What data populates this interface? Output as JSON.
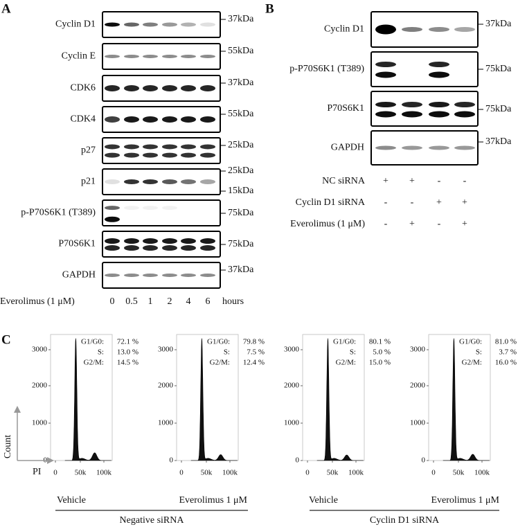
{
  "panels": {
    "A": {
      "label": "A",
      "blots": [
        {
          "name": "Cyclin D1",
          "sizes": [
            "37kDa"
          ]
        },
        {
          "name": "Cyclin E",
          "sizes": [
            "55kDa"
          ]
        },
        {
          "name": "CDK6",
          "sizes": [
            "37kDa"
          ]
        },
        {
          "name": "CDK4",
          "sizes": [
            "55kDa"
          ]
        },
        {
          "name": "p27",
          "sizes": [
            "25kDa"
          ]
        },
        {
          "name": "p21",
          "sizes": [
            "25kDa",
            "15kDa"
          ]
        },
        {
          "name": "p-P70S6K1 (T389)",
          "sizes": [
            "75kDa"
          ]
        },
        {
          "name": "P70S6K1",
          "sizes": [
            "75kDa"
          ]
        },
        {
          "name": "GAPDH",
          "sizes": [
            "37kDa"
          ]
        }
      ],
      "treatment": "Everolimus (1 μM)",
      "timepoints": [
        "0",
        "0.5",
        "1",
        "2",
        "4",
        "6"
      ],
      "time_unit": "hours"
    },
    "B": {
      "label": "B",
      "blots": [
        {
          "name": "Cyclin D1",
          "sizes": [
            "37kDa"
          ]
        },
        {
          "name": "p-P70S6K1 (T389)",
          "sizes": [
            "75kDa"
          ]
        },
        {
          "name": "P70S6K1",
          "sizes": [
            "75kDa"
          ]
        },
        {
          "name": "GAPDH",
          "sizes": [
            "37kDa"
          ]
        }
      ],
      "conditions": [
        {
          "name": "NC siRNA",
          "marks": [
            "+",
            "+",
            "-",
            "-"
          ]
        },
        {
          "name": "Cyclin D1 siRNA",
          "marks": [
            "-",
            "-",
            "+",
            "+"
          ]
        },
        {
          "name": "Everolimus (1 μM)",
          "marks": [
            "-",
            "+",
            "-",
            "+"
          ]
        }
      ]
    },
    "C": {
      "label": "C",
      "y_label": "Count",
      "x_label": "PI",
      "yticks": [
        "0",
        "1000",
        "2000",
        "3000"
      ],
      "xticks": [
        "0",
        "50k",
        "100k"
      ],
      "histograms": [
        {
          "condition": "Vehicle",
          "stats": [
            {
              "phase": "G1/G0:",
              "value": "72.1 %"
            },
            {
              "phase": "S:",
              "value": "13.0 %"
            },
            {
              "phase": "G2/M:",
              "value": "14.5 %"
            }
          ]
        },
        {
          "condition": "Everolimus 1 μM",
          "stats": [
            {
              "phase": "G1/G0:",
              "value": "79.8 %"
            },
            {
              "phase": "S:",
              "value": "7.5 %"
            },
            {
              "phase": "G2/M:",
              "value": "12.4 %"
            }
          ]
        },
        {
          "condition": "Vehicle",
          "stats": [
            {
              "phase": "G1/G0:",
              "value": "80.1 %"
            },
            {
              "phase": "S:",
              "value": "5.0 %"
            },
            {
              "phase": "G2/M:",
              "value": "15.0 %"
            }
          ]
        },
        {
          "condition": "Everolimus 1 μM",
          "stats": [
            {
              "phase": "G1/G0:",
              "value": "81.0 %"
            },
            {
              "phase": "S:",
              "value": "3.7 %"
            },
            {
              "phase": "G2/M:",
              "value": "16.0 %"
            }
          ]
        }
      ],
      "groups": [
        "Negative siRNA",
        "Cyclin D1 siRNA"
      ]
    }
  }
}
